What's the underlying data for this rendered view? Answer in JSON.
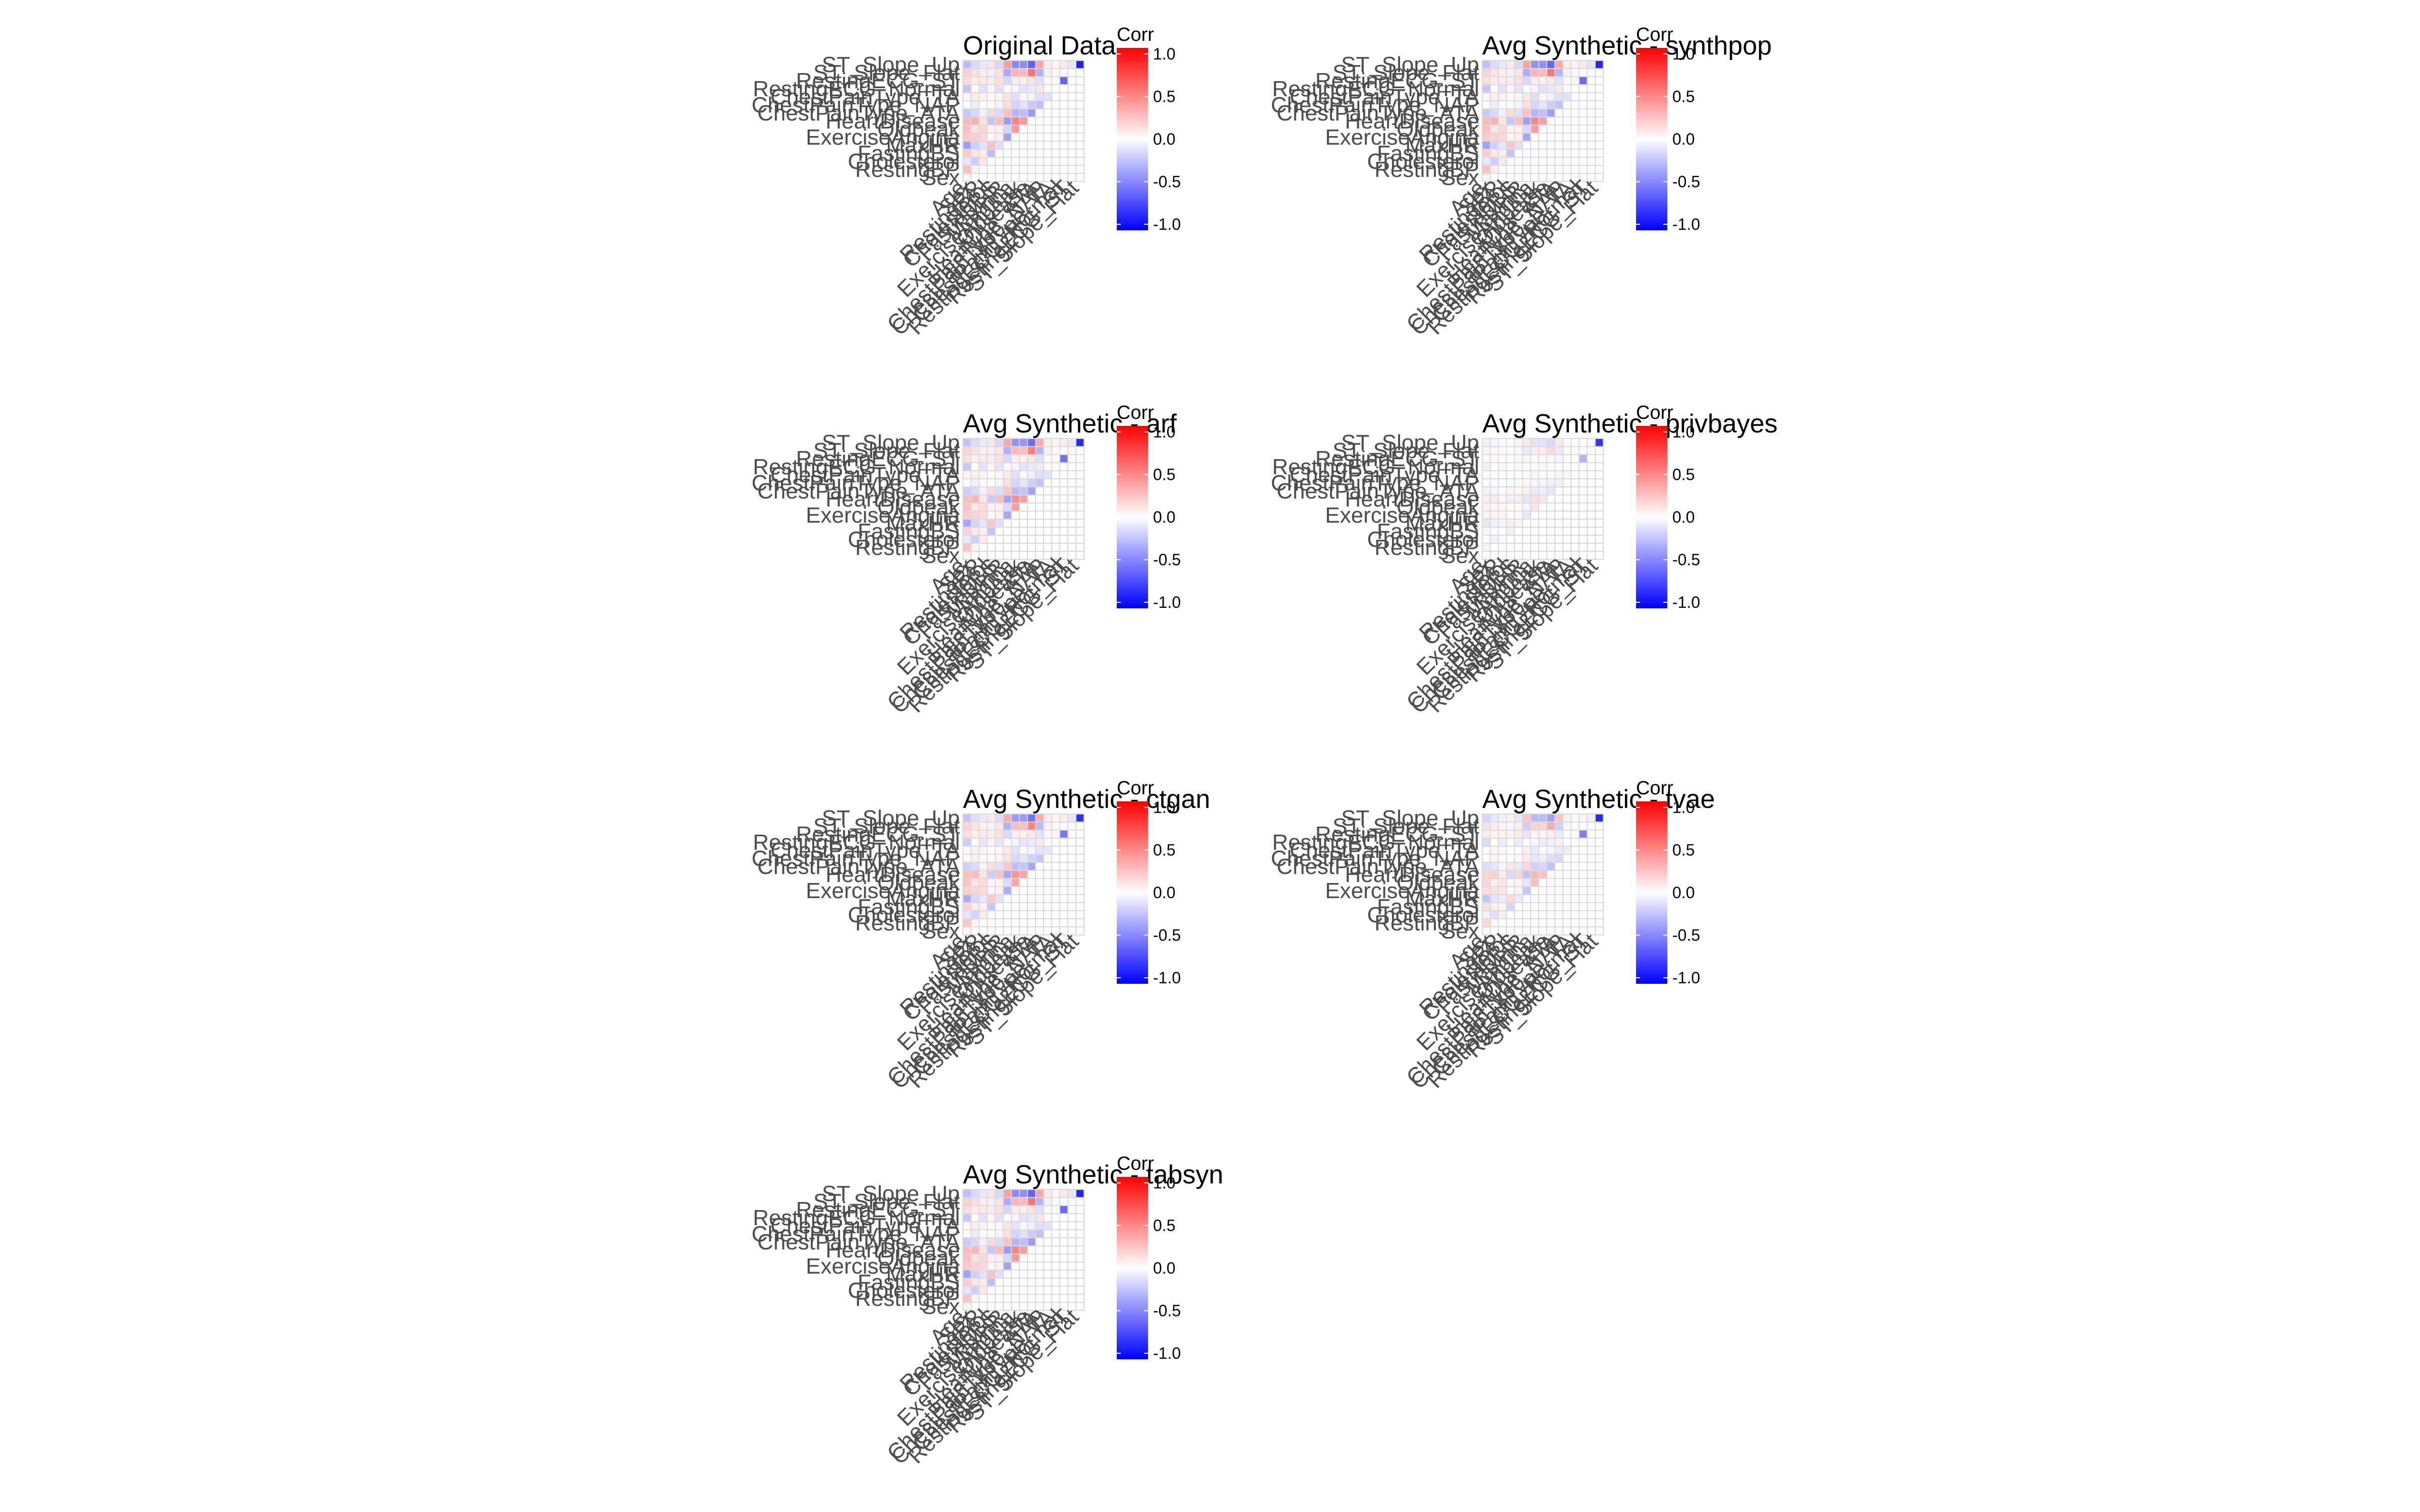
{
  "chart_data": {
    "type": "heatmap",
    "variables": [
      "Sex",
      "RestingBP",
      "Cholesterol",
      "FastingBS",
      "MaxHR",
      "ExerciseAngina",
      "Oldpeak",
      "HeartDisease",
      "ChestPainType_ATA",
      "ChestPainType_NAP",
      "ChestPainType_TA",
      "RestingECG_Normal",
      "RestingECG_ST",
      "ST_Slope_Flat",
      "ST_Slope_Up"
    ],
    "x_labels": [
      "Age",
      "Sex",
      "RestingBP",
      "Cholesterol",
      "FastingBS",
      "MaxHR",
      "ExerciseAngina",
      "Oldpeak",
      "HeartDisease",
      "ChestPainType_ATA",
      "ChestPainType_NAP",
      "ChestPainType_TA",
      "RestingECG_Normal",
      "RestingECG_ST",
      "ST_Slope_Flat"
    ],
    "y_labels": [
      "Sex",
      "RestingBP",
      "Cholesterol",
      "FastingBS",
      "MaxHR",
      "ExerciseAngina",
      "Oldpeak",
      "HeartDisease",
      "ChestPainType_ATA",
      "ChestPainType_NAP",
      "ChestPainType_TA",
      "RestingECG_Normal",
      "RestingECG_ST",
      "ST_Slope_Flat",
      "ST_Slope_Up"
    ],
    "legend": {
      "title": "Corr",
      "ticks": [
        "1.0",
        "0.5",
        "0.0",
        "-0.5",
        "-1.0"
      ],
      "range": [
        -1,
        1
      ],
      "low_color": "#0000ff",
      "mid_color": "#ffffff",
      "high_color": "#ff0000"
    },
    "panels": [
      {
        "title": "Original Data",
        "matrix": [
          [
            0.05
          ],
          [
            0.25,
            0.05
          ],
          [
            -0.1,
            -0.2,
            0.1
          ],
          [
            0.2,
            0.1,
            0.07,
            -0.26
          ],
          [
            -0.38,
            -0.19,
            -0.11,
            0.24,
            -0.13
          ],
          [
            0.22,
            0.19,
            0.16,
            0.03,
            0.06,
            -0.37
          ],
          [
            0.26,
            0.11,
            0.16,
            0.05,
            0.05,
            -0.16,
            0.41
          ],
          [
            0.28,
            0.31,
            0.11,
            -0.23,
            0.27,
            -0.4,
            0.49,
            0.4
          ],
          [
            -0.22,
            -0.16,
            -0.05,
            0.15,
            -0.14,
            0.25,
            -0.3,
            -0.26,
            -0.4
          ],
          [
            -0.01,
            -0.07,
            -0.01,
            -0.01,
            -0.04,
            0.13,
            -0.17,
            -0.11,
            -0.21,
            -0.25
          ],
          [
            0.03,
            0.07,
            0.05,
            0.02,
            0.03,
            0.1,
            -0.13,
            0.03,
            -0.05,
            -0.13,
            -0.12
          ],
          [
            -0.23,
            0.01,
            -0.12,
            0.04,
            -0.11,
            -0.02,
            -0.04,
            -0.12,
            -0.09,
            0.1,
            0.02,
            -0.01
          ],
          [
            0.14,
            0.07,
            0.09,
            0.08,
            0.13,
            -0.16,
            0.07,
            0.06,
            0.1,
            -0.13,
            0.02,
            0.04,
            -0.6
          ],
          [
            0.19,
            0.12,
            0.06,
            -0.05,
            0.11,
            -0.34,
            0.3,
            0.28,
            0.55,
            -0.31,
            -0.05,
            -0.02,
            -0.01,
            0.02
          ],
          [
            -0.26,
            -0.15,
            -0.09,
            0.1,
            -0.16,
            0.38,
            -0.46,
            -0.45,
            -0.62,
            0.36,
            0.08,
            0.04,
            0.09,
            -0.1,
            -0.87
          ]
        ]
      },
      {
        "title": "Avg Synthetic - synthpop",
        "matrix": [
          [
            0.05
          ],
          [
            0.24,
            0.05
          ],
          [
            -0.09,
            -0.19,
            0.09
          ],
          [
            0.19,
            0.09,
            0.07,
            -0.24
          ],
          [
            -0.36,
            -0.18,
            -0.1,
            0.22,
            -0.12
          ],
          [
            0.21,
            0.18,
            0.15,
            0.03,
            0.06,
            -0.35
          ],
          [
            0.25,
            0.1,
            0.15,
            0.05,
            0.05,
            -0.15,
            0.39
          ],
          [
            0.27,
            0.3,
            0.1,
            -0.22,
            0.26,
            -0.38,
            0.47,
            0.38
          ],
          [
            -0.21,
            -0.15,
            -0.05,
            0.14,
            -0.13,
            0.24,
            -0.29,
            -0.25,
            -0.38
          ],
          [
            -0.01,
            -0.07,
            -0.01,
            -0.01,
            -0.04,
            0.12,
            -0.16,
            -0.1,
            -0.2,
            -0.24
          ],
          [
            0.03,
            0.06,
            0.05,
            0.02,
            0.03,
            0.09,
            -0.12,
            0.03,
            -0.05,
            -0.12,
            -0.11
          ],
          [
            -0.22,
            0.01,
            -0.11,
            0.04,
            -0.1,
            -0.02,
            -0.04,
            -0.11,
            -0.09,
            0.09,
            0.02,
            -0.01
          ],
          [
            0.13,
            0.07,
            0.08,
            0.08,
            0.12,
            -0.15,
            0.07,
            0.06,
            0.09,
            -0.12,
            0.02,
            0.04,
            -0.58
          ],
          [
            0.18,
            0.11,
            0.06,
            -0.05,
            0.1,
            -0.32,
            0.29,
            0.27,
            0.53,
            -0.3,
            -0.05,
            -0.02,
            -0.01,
            0.02
          ],
          [
            -0.25,
            -0.14,
            -0.09,
            0.09,
            -0.15,
            0.36,
            -0.44,
            -0.43,
            -0.6,
            0.34,
            0.08,
            0.04,
            0.09,
            -0.1,
            -0.85
          ]
        ]
      },
      {
        "title": "Avg Synthetic - arf",
        "matrix": [
          [
            0.04
          ],
          [
            0.23,
            0.04
          ],
          [
            -0.09,
            -0.18,
            0.09
          ],
          [
            0.18,
            0.09,
            0.06,
            -0.23
          ],
          [
            -0.35,
            -0.17,
            -0.1,
            0.22,
            -0.12
          ],
          [
            0.2,
            0.17,
            0.14,
            0.03,
            0.05,
            -0.34
          ],
          [
            0.24,
            0.1,
            0.14,
            0.05,
            0.05,
            -0.15,
            0.38
          ],
          [
            0.26,
            0.29,
            0.1,
            -0.21,
            0.25,
            -0.37,
            0.45,
            0.37
          ],
          [
            -0.2,
            -0.15,
            -0.05,
            0.14,
            -0.13,
            0.23,
            -0.28,
            -0.24,
            -0.37
          ],
          [
            -0.01,
            -0.06,
            -0.01,
            -0.01,
            -0.04,
            0.12,
            -0.16,
            -0.1,
            -0.19,
            -0.23
          ],
          [
            0.03,
            0.06,
            0.05,
            0.02,
            0.03,
            0.09,
            -0.12,
            0.03,
            -0.05,
            -0.12,
            -0.11
          ],
          [
            -0.21,
            0.01,
            -0.11,
            0.04,
            -0.1,
            -0.02,
            -0.04,
            -0.11,
            -0.08,
            0.09,
            0.02,
            -0.01
          ],
          [
            0.13,
            0.06,
            0.08,
            0.07,
            0.12,
            -0.15,
            0.06,
            0.06,
            0.09,
            -0.12,
            0.02,
            0.04,
            -0.56
          ],
          [
            0.17,
            0.11,
            0.06,
            -0.05,
            0.1,
            -0.31,
            0.28,
            0.26,
            0.51,
            -0.29,
            -0.05,
            -0.02,
            -0.01,
            0.02
          ],
          [
            -0.24,
            -0.14,
            -0.08,
            0.09,
            -0.15,
            0.35,
            -0.43,
            -0.42,
            -0.58,
            0.33,
            0.07,
            0.04,
            0.08,
            -0.09,
            -0.84
          ]
        ]
      },
      {
        "title": "Avg Synthetic - privbayes",
        "matrix": [
          [
            0.01
          ],
          [
            0.06,
            0.01
          ],
          [
            -0.02,
            -0.05,
            0.02
          ],
          [
            0.05,
            0.02,
            0.02,
            -0.06
          ],
          [
            -0.09,
            -0.05,
            -0.03,
            0.06,
            -0.03
          ],
          [
            0.05,
            0.05,
            0.04,
            0.01,
            0.02,
            -0.09
          ],
          [
            0.06,
            0.03,
            0.04,
            0.01,
            0.01,
            -0.04,
            0.1
          ],
          [
            0.07,
            0.08,
            0.03,
            -0.06,
            0.07,
            -0.1,
            0.12,
            0.1
          ],
          [
            -0.05,
            -0.04,
            -0.01,
            0.04,
            -0.03,
            0.06,
            -0.07,
            -0.06,
            -0.1
          ],
          [
            0.0,
            -0.02,
            0.0,
            0.0,
            -0.01,
            0.03,
            -0.04,
            -0.03,
            -0.05,
            -0.06
          ],
          [
            0.01,
            0.02,
            0.01,
            0.01,
            0.01,
            0.02,
            -0.03,
            0.01,
            -0.01,
            -0.03,
            -0.03
          ],
          [
            -0.06,
            0.0,
            -0.03,
            0.01,
            -0.03,
            -0.01,
            -0.01,
            -0.03,
            -0.02,
            0.02,
            0.01,
            0.0
          ],
          [
            0.03,
            0.02,
            0.02,
            0.02,
            0.03,
            -0.04,
            0.02,
            0.02,
            0.02,
            -0.03,
            0.01,
            0.01,
            -0.3
          ],
          [
            0.05,
            0.03,
            0.02,
            -0.01,
            0.03,
            -0.08,
            0.07,
            0.07,
            0.14,
            -0.08,
            -0.01,
            -0.01,
            0.0,
            0.01
          ],
          [
            -0.06,
            -0.04,
            -0.02,
            0.02,
            -0.04,
            0.09,
            -0.11,
            -0.11,
            -0.15,
            0.09,
            0.02,
            0.01,
            0.02,
            -0.03,
            -0.8
          ]
        ]
      },
      {
        "title": "Avg Synthetic - ctgan",
        "matrix": [
          [
            0.04
          ],
          [
            0.22,
            0.04
          ],
          [
            -0.09,
            -0.17,
            0.08
          ],
          [
            0.18,
            0.08,
            0.06,
            -0.22
          ],
          [
            -0.33,
            -0.16,
            -0.09,
            0.21,
            -0.11
          ],
          [
            0.19,
            0.17,
            0.14,
            0.03,
            0.05,
            -0.32
          ],
          [
            0.23,
            0.1,
            0.14,
            0.04,
            0.04,
            -0.14,
            0.36
          ],
          [
            0.25,
            0.27,
            0.1,
            -0.2,
            0.24,
            -0.35,
            0.43,
            0.35
          ],
          [
            -0.19,
            -0.14,
            -0.04,
            0.13,
            -0.12,
            0.22,
            -0.26,
            -0.23,
            -0.35
          ],
          [
            -0.01,
            -0.06,
            -0.01,
            -0.01,
            -0.04,
            0.11,
            -0.15,
            -0.1,
            -0.18,
            -0.22
          ],
          [
            0.03,
            0.06,
            0.04,
            0.02,
            0.03,
            0.09,
            -0.11,
            0.03,
            -0.04,
            -0.11,
            -0.1
          ],
          [
            -0.2,
            0.01,
            -0.1,
            0.04,
            -0.1,
            -0.02,
            -0.04,
            -0.1,
            -0.08,
            0.09,
            0.02,
            -0.01
          ],
          [
            0.12,
            0.06,
            0.08,
            0.07,
            0.11,
            -0.14,
            0.06,
            0.05,
            0.09,
            -0.11,
            0.02,
            0.04,
            -0.53
          ],
          [
            0.17,
            0.1,
            0.05,
            -0.04,
            0.1,
            -0.3,
            0.26,
            0.25,
            0.48,
            -0.27,
            -0.04,
            -0.02,
            -0.01,
            0.02
          ],
          [
            -0.23,
            -0.13,
            -0.08,
            0.09,
            -0.14,
            0.33,
            -0.4,
            -0.4,
            -0.55,
            0.32,
            0.07,
            0.04,
            0.08,
            -0.09,
            -0.82
          ]
        ]
      },
      {
        "title": "Avg Synthetic - tvae",
        "matrix": [
          [
            0.03
          ],
          [
            0.15,
            0.03
          ],
          [
            -0.06,
            -0.12,
            0.06
          ],
          [
            0.12,
            0.06,
            0.04,
            -0.16
          ],
          [
            -0.23,
            -0.11,
            -0.07,
            0.14,
            -0.08
          ],
          [
            0.13,
            0.11,
            0.1,
            0.02,
            0.04,
            -0.22
          ],
          [
            0.16,
            0.07,
            0.1,
            0.03,
            0.03,
            -0.1,
            0.25
          ],
          [
            0.17,
            0.19,
            0.07,
            -0.14,
            0.16,
            -0.24,
            0.29,
            0.24
          ],
          [
            -0.13,
            -0.1,
            -0.03,
            0.09,
            -0.08,
            0.15,
            -0.18,
            -0.16,
            -0.24
          ],
          [
            -0.01,
            -0.04,
            -0.01,
            -0.01,
            -0.02,
            0.08,
            -0.1,
            -0.07,
            -0.13,
            -0.15
          ],
          [
            0.02,
            0.04,
            0.03,
            0.01,
            0.02,
            0.06,
            -0.08,
            0.02,
            -0.03,
            -0.08,
            -0.07
          ],
          [
            -0.14,
            0.01,
            -0.07,
            0.02,
            -0.07,
            -0.01,
            -0.02,
            -0.07,
            -0.05,
            0.06,
            0.01,
            -0.01
          ],
          [
            0.08,
            0.04,
            0.05,
            0.05,
            0.08,
            -0.1,
            0.04,
            0.04,
            0.06,
            -0.08,
            0.01,
            0.02,
            -0.5
          ],
          [
            0.11,
            0.07,
            0.04,
            -0.03,
            0.07,
            -0.2,
            0.18,
            0.17,
            0.33,
            -0.19,
            -0.03,
            -0.01,
            -0.01,
            0.01
          ],
          [
            -0.16,
            -0.09,
            -0.05,
            0.06,
            -0.1,
            0.23,
            -0.28,
            -0.27,
            -0.37,
            0.22,
            0.05,
            0.02,
            0.05,
            -0.06,
            -0.84
          ]
        ]
      },
      {
        "title": "Avg Synthetic - tabsyn",
        "matrix": [
          [
            0.05
          ],
          [
            0.24,
            0.05
          ],
          [
            -0.1,
            -0.19,
            0.09
          ],
          [
            0.19,
            0.1,
            0.07,
            -0.25
          ],
          [
            -0.37,
            -0.18,
            -0.11,
            0.23,
            -0.12
          ],
          [
            0.21,
            0.18,
            0.15,
            0.03,
            0.06,
            -0.36
          ],
          [
            0.25,
            0.11,
            0.15,
            0.05,
            0.05,
            -0.16,
            0.4
          ],
          [
            0.27,
            0.3,
            0.11,
            -0.22,
            0.26,
            -0.39,
            0.48,
            0.39
          ],
          [
            -0.21,
            -0.16,
            -0.05,
            0.15,
            -0.14,
            0.24,
            -0.29,
            -0.25,
            -0.39
          ],
          [
            -0.01,
            -0.07,
            -0.01,
            -0.01,
            -0.04,
            0.13,
            -0.17,
            -0.11,
            -0.2,
            -0.24
          ],
          [
            0.03,
            0.07,
            0.05,
            0.02,
            0.03,
            0.1,
            -0.12,
            0.03,
            -0.05,
            -0.12,
            -0.11
          ],
          [
            -0.22,
            0.01,
            -0.12,
            0.04,
            -0.11,
            -0.02,
            -0.04,
            -0.12,
            -0.09,
            0.1,
            0.02,
            -0.01
          ],
          [
            0.14,
            0.07,
            0.09,
            0.08,
            0.12,
            -0.16,
            0.07,
            0.06,
            0.1,
            -0.13,
            0.02,
            0.04,
            -0.59
          ],
          [
            0.18,
            0.12,
            0.06,
            -0.05,
            0.11,
            -0.33,
            0.29,
            0.27,
            0.54,
            -0.3,
            -0.05,
            -0.02,
            -0.01,
            0.02
          ],
          [
            -0.25,
            -0.15,
            -0.09,
            0.1,
            -0.16,
            0.37,
            -0.45,
            -0.44,
            -0.61,
            0.35,
            0.08,
            0.04,
            0.09,
            -0.1,
            -0.86
          ]
        ]
      }
    ]
  }
}
